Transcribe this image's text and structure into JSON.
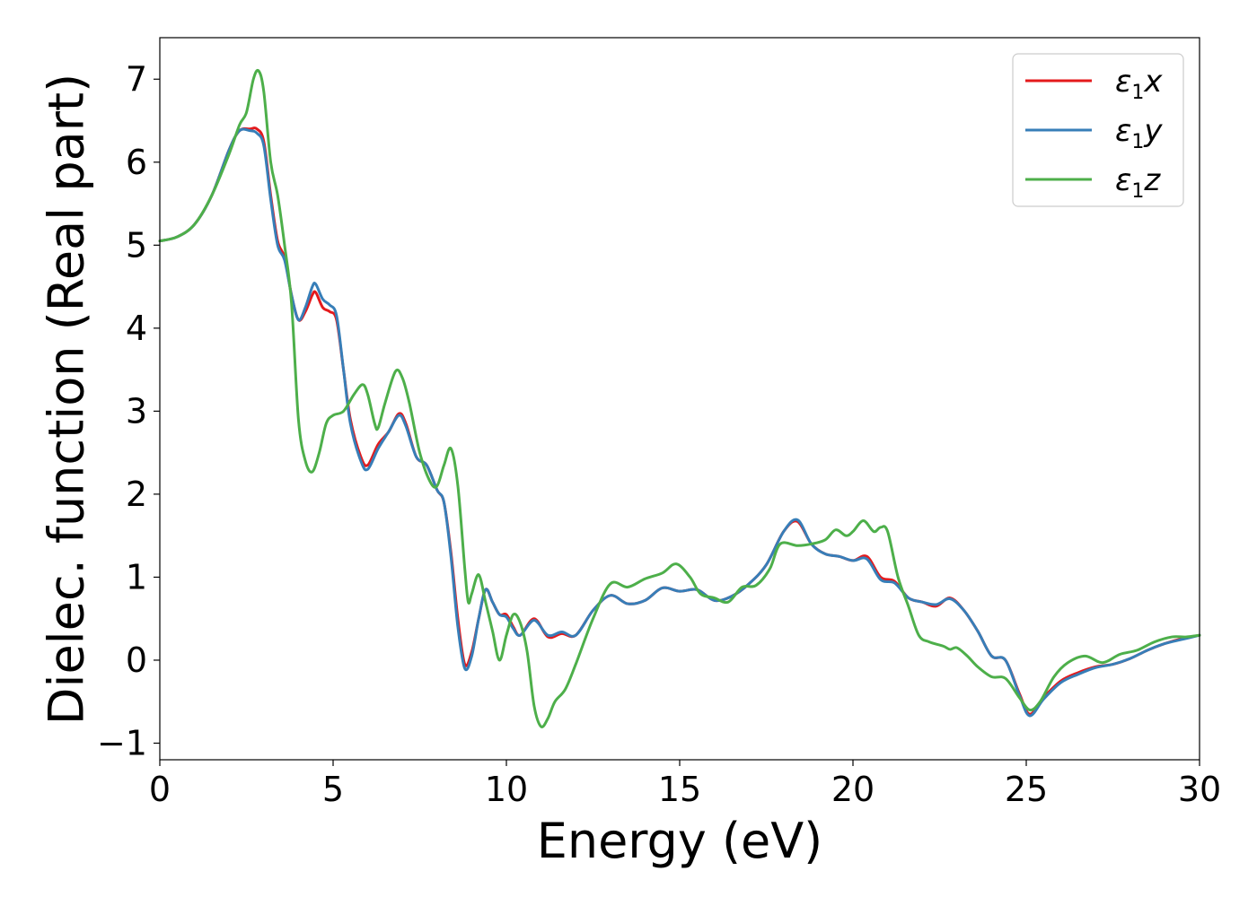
{
  "chart_data": {
    "type": "line",
    "xlabel": "Energy (eV)",
    "ylabel": "Dielec. function (Real part)",
    "xlim": [
      0,
      30
    ],
    "ylim": [
      -1.2,
      7.5
    ],
    "xticks": [
      0,
      5,
      10,
      15,
      20,
      25,
      30
    ],
    "yticks": [
      -1,
      0,
      1,
      2,
      3,
      4,
      5,
      6,
      7
    ],
    "xtick_labels": [
      "0",
      "5",
      "10",
      "15",
      "20",
      "25",
      "30"
    ],
    "ytick_labels": [
      "−1",
      "0",
      "1",
      "2",
      "3",
      "4",
      "5",
      "6",
      "7"
    ],
    "grid": false,
    "legend": "top-right",
    "series": [
      {
        "name": "ε₁x",
        "symbol": "ε",
        "subscript": "1",
        "suffix": "x",
        "color": "#e41a1c",
        "points": [
          [
            0,
            5.05
          ],
          [
            0.5,
            5.1
          ],
          [
            1.0,
            5.25
          ],
          [
            1.5,
            5.6
          ],
          [
            2.0,
            6.15
          ],
          [
            2.3,
            6.38
          ],
          [
            2.6,
            6.4
          ],
          [
            2.8,
            6.4
          ],
          [
            3.0,
            6.25
          ],
          [
            3.2,
            5.6
          ],
          [
            3.4,
            5.05
          ],
          [
            3.6,
            4.85
          ],
          [
            3.8,
            4.4
          ],
          [
            4.0,
            4.1
          ],
          [
            4.2,
            4.2
          ],
          [
            4.4,
            4.4
          ],
          [
            4.5,
            4.43
          ],
          [
            4.7,
            4.25
          ],
          [
            4.9,
            4.2
          ],
          [
            5.1,
            4.1
          ],
          [
            5.3,
            3.5
          ],
          [
            5.5,
            2.9
          ],
          [
            5.8,
            2.45
          ],
          [
            6.0,
            2.35
          ],
          [
            6.3,
            2.6
          ],
          [
            6.6,
            2.75
          ],
          [
            6.9,
            2.97
          ],
          [
            7.1,
            2.85
          ],
          [
            7.4,
            2.45
          ],
          [
            7.7,
            2.35
          ],
          [
            8.0,
            2.05
          ],
          [
            8.2,
            1.9
          ],
          [
            8.4,
            1.3
          ],
          [
            8.6,
            0.5
          ],
          [
            8.8,
            -0.05
          ],
          [
            9.0,
            0.1
          ],
          [
            9.2,
            0.5
          ],
          [
            9.4,
            0.85
          ],
          [
            9.6,
            0.7
          ],
          [
            9.8,
            0.55
          ],
          [
            10.0,
            0.55
          ],
          [
            10.2,
            0.4
          ],
          [
            10.4,
            0.3
          ],
          [
            10.8,
            0.5
          ],
          [
            11.2,
            0.28
          ],
          [
            11.6,
            0.32
          ],
          [
            12.0,
            0.3
          ],
          [
            12.5,
            0.6
          ],
          [
            13.0,
            0.78
          ],
          [
            13.5,
            0.68
          ],
          [
            14.0,
            0.72
          ],
          [
            14.5,
            0.87
          ],
          [
            15.0,
            0.83
          ],
          [
            15.5,
            0.85
          ],
          [
            16.0,
            0.72
          ],
          [
            16.5,
            0.77
          ],
          [
            17.0,
            0.92
          ],
          [
            17.5,
            1.15
          ],
          [
            18.0,
            1.55
          ],
          [
            18.4,
            1.67
          ],
          [
            18.8,
            1.4
          ],
          [
            19.2,
            1.28
          ],
          [
            19.6,
            1.25
          ],
          [
            20.0,
            1.2
          ],
          [
            20.4,
            1.25
          ],
          [
            20.8,
            1.0
          ],
          [
            21.2,
            0.95
          ],
          [
            21.6,
            0.75
          ],
          [
            22.0,
            0.7
          ],
          [
            22.4,
            0.65
          ],
          [
            22.8,
            0.75
          ],
          [
            23.2,
            0.6
          ],
          [
            23.6,
            0.35
          ],
          [
            24.0,
            0.05
          ],
          [
            24.4,
            0.0
          ],
          [
            24.8,
            -0.4
          ],
          [
            25.1,
            -0.65
          ],
          [
            25.5,
            -0.45
          ],
          [
            26.0,
            -0.25
          ],
          [
            26.5,
            -0.15
          ],
          [
            27.0,
            -0.08
          ],
          [
            27.5,
            -0.05
          ],
          [
            28.0,
            0.02
          ],
          [
            28.5,
            0.12
          ],
          [
            29.0,
            0.2
          ],
          [
            29.5,
            0.26
          ],
          [
            30.0,
            0.3
          ]
        ]
      },
      {
        "name": "ε₁y",
        "symbol": "ε",
        "subscript": "1",
        "suffix": "y",
        "color": "#377eb8",
        "points": [
          [
            0,
            5.05
          ],
          [
            0.5,
            5.1
          ],
          [
            1.0,
            5.25
          ],
          [
            1.5,
            5.6
          ],
          [
            2.0,
            6.15
          ],
          [
            2.3,
            6.38
          ],
          [
            2.6,
            6.38
          ],
          [
            2.8,
            6.35
          ],
          [
            3.0,
            6.2
          ],
          [
            3.2,
            5.55
          ],
          [
            3.4,
            5.0
          ],
          [
            3.6,
            4.82
          ],
          [
            3.8,
            4.4
          ],
          [
            4.0,
            4.1
          ],
          [
            4.2,
            4.25
          ],
          [
            4.4,
            4.5
          ],
          [
            4.5,
            4.53
          ],
          [
            4.7,
            4.35
          ],
          [
            4.9,
            4.28
          ],
          [
            5.1,
            4.15
          ],
          [
            5.3,
            3.5
          ],
          [
            5.5,
            2.85
          ],
          [
            5.8,
            2.4
          ],
          [
            6.0,
            2.3
          ],
          [
            6.3,
            2.55
          ],
          [
            6.6,
            2.75
          ],
          [
            6.9,
            2.95
          ],
          [
            7.1,
            2.82
          ],
          [
            7.4,
            2.45
          ],
          [
            7.7,
            2.35
          ],
          [
            8.0,
            2.05
          ],
          [
            8.2,
            1.9
          ],
          [
            8.4,
            1.25
          ],
          [
            8.6,
            0.4
          ],
          [
            8.8,
            -0.1
          ],
          [
            9.0,
            0.05
          ],
          [
            9.2,
            0.5
          ],
          [
            9.4,
            0.85
          ],
          [
            9.6,
            0.7
          ],
          [
            9.8,
            0.55
          ],
          [
            10.0,
            0.52
          ],
          [
            10.2,
            0.38
          ],
          [
            10.4,
            0.3
          ],
          [
            10.8,
            0.48
          ],
          [
            11.2,
            0.3
          ],
          [
            11.6,
            0.34
          ],
          [
            12.0,
            0.3
          ],
          [
            12.5,
            0.6
          ],
          [
            13.0,
            0.78
          ],
          [
            13.5,
            0.68
          ],
          [
            14.0,
            0.72
          ],
          [
            14.5,
            0.87
          ],
          [
            15.0,
            0.83
          ],
          [
            15.5,
            0.85
          ],
          [
            16.0,
            0.72
          ],
          [
            16.5,
            0.77
          ],
          [
            17.0,
            0.92
          ],
          [
            17.5,
            1.15
          ],
          [
            18.0,
            1.55
          ],
          [
            18.4,
            1.69
          ],
          [
            18.8,
            1.4
          ],
          [
            19.2,
            1.28
          ],
          [
            19.6,
            1.25
          ],
          [
            20.0,
            1.2
          ],
          [
            20.4,
            1.22
          ],
          [
            20.8,
            0.97
          ],
          [
            21.2,
            0.93
          ],
          [
            21.6,
            0.75
          ],
          [
            22.0,
            0.7
          ],
          [
            22.4,
            0.67
          ],
          [
            22.8,
            0.74
          ],
          [
            23.2,
            0.6
          ],
          [
            23.6,
            0.35
          ],
          [
            24.0,
            0.05
          ],
          [
            24.4,
            0.0
          ],
          [
            24.8,
            -0.42
          ],
          [
            25.1,
            -0.67
          ],
          [
            25.5,
            -0.47
          ],
          [
            26.0,
            -0.27
          ],
          [
            26.5,
            -0.17
          ],
          [
            27.0,
            -0.09
          ],
          [
            27.5,
            -0.05
          ],
          [
            28.0,
            0.02
          ],
          [
            28.5,
            0.12
          ],
          [
            29.0,
            0.2
          ],
          [
            29.5,
            0.25
          ],
          [
            30.0,
            0.3
          ]
        ]
      },
      {
        "name": "ε₁z",
        "symbol": "ε",
        "subscript": "1",
        "suffix": "z",
        "color": "#4daf4a",
        "points": [
          [
            0,
            5.05
          ],
          [
            0.5,
            5.1
          ],
          [
            1.0,
            5.25
          ],
          [
            1.5,
            5.6
          ],
          [
            2.0,
            6.1
          ],
          [
            2.3,
            6.45
          ],
          [
            2.5,
            6.6
          ],
          [
            2.7,
            7.0
          ],
          [
            2.85,
            7.1
          ],
          [
            3.0,
            6.85
          ],
          [
            3.2,
            6.0
          ],
          [
            3.4,
            5.6
          ],
          [
            3.6,
            5.0
          ],
          [
            3.8,
            4.3
          ],
          [
            4.0,
            2.9
          ],
          [
            4.2,
            2.4
          ],
          [
            4.4,
            2.27
          ],
          [
            4.6,
            2.5
          ],
          [
            4.8,
            2.85
          ],
          [
            5.0,
            2.95
          ],
          [
            5.3,
            3.0
          ],
          [
            5.6,
            3.2
          ],
          [
            5.85,
            3.32
          ],
          [
            6.0,
            3.2
          ],
          [
            6.2,
            2.85
          ],
          [
            6.3,
            2.8
          ],
          [
            6.5,
            3.1
          ],
          [
            6.8,
            3.48
          ],
          [
            7.0,
            3.4
          ],
          [
            7.2,
            3.1
          ],
          [
            7.5,
            2.5
          ],
          [
            7.8,
            2.15
          ],
          [
            8.0,
            2.1
          ],
          [
            8.2,
            2.35
          ],
          [
            8.4,
            2.55
          ],
          [
            8.6,
            2.1
          ],
          [
            8.8,
            1.1
          ],
          [
            8.9,
            0.7
          ],
          [
            9.0,
            0.8
          ],
          [
            9.2,
            1.03
          ],
          [
            9.4,
            0.7
          ],
          [
            9.6,
            0.35
          ],
          [
            9.8,
            0.0
          ],
          [
            10.0,
            0.3
          ],
          [
            10.2,
            0.55
          ],
          [
            10.4,
            0.45
          ],
          [
            10.6,
            0.1
          ],
          [
            10.8,
            -0.55
          ],
          [
            11.0,
            -0.8
          ],
          [
            11.2,
            -0.7
          ],
          [
            11.4,
            -0.5
          ],
          [
            11.7,
            -0.35
          ],
          [
            12.0,
            -0.05
          ],
          [
            12.5,
            0.5
          ],
          [
            13.0,
            0.92
          ],
          [
            13.5,
            0.88
          ],
          [
            14.0,
            0.98
          ],
          [
            14.5,
            1.05
          ],
          [
            14.9,
            1.16
          ],
          [
            15.3,
            1.0
          ],
          [
            15.6,
            0.8
          ],
          [
            16.0,
            0.75
          ],
          [
            16.4,
            0.7
          ],
          [
            16.8,
            0.88
          ],
          [
            17.2,
            0.9
          ],
          [
            17.6,
            1.1
          ],
          [
            17.9,
            1.4
          ],
          [
            18.4,
            1.38
          ],
          [
            18.8,
            1.4
          ],
          [
            19.2,
            1.45
          ],
          [
            19.5,
            1.57
          ],
          [
            19.8,
            1.5
          ],
          [
            20.0,
            1.55
          ],
          [
            20.3,
            1.68
          ],
          [
            20.6,
            1.55
          ],
          [
            20.8,
            1.6
          ],
          [
            21.0,
            1.55
          ],
          [
            21.3,
            1.0
          ],
          [
            21.6,
            0.65
          ],
          [
            21.9,
            0.3
          ],
          [
            22.2,
            0.22
          ],
          [
            22.6,
            0.17
          ],
          [
            22.8,
            0.13
          ],
          [
            23.0,
            0.15
          ],
          [
            23.3,
            0.05
          ],
          [
            23.6,
            -0.08
          ],
          [
            24.0,
            -0.2
          ],
          [
            24.4,
            -0.22
          ],
          [
            24.8,
            -0.45
          ],
          [
            25.1,
            -0.6
          ],
          [
            25.4,
            -0.5
          ],
          [
            25.8,
            -0.2
          ],
          [
            26.2,
            -0.03
          ],
          [
            26.7,
            0.05
          ],
          [
            27.2,
            -0.03
          ],
          [
            27.7,
            0.07
          ],
          [
            28.2,
            0.12
          ],
          [
            28.7,
            0.22
          ],
          [
            29.2,
            0.28
          ],
          [
            29.6,
            0.28
          ],
          [
            30.0,
            0.3
          ]
        ]
      }
    ]
  }
}
